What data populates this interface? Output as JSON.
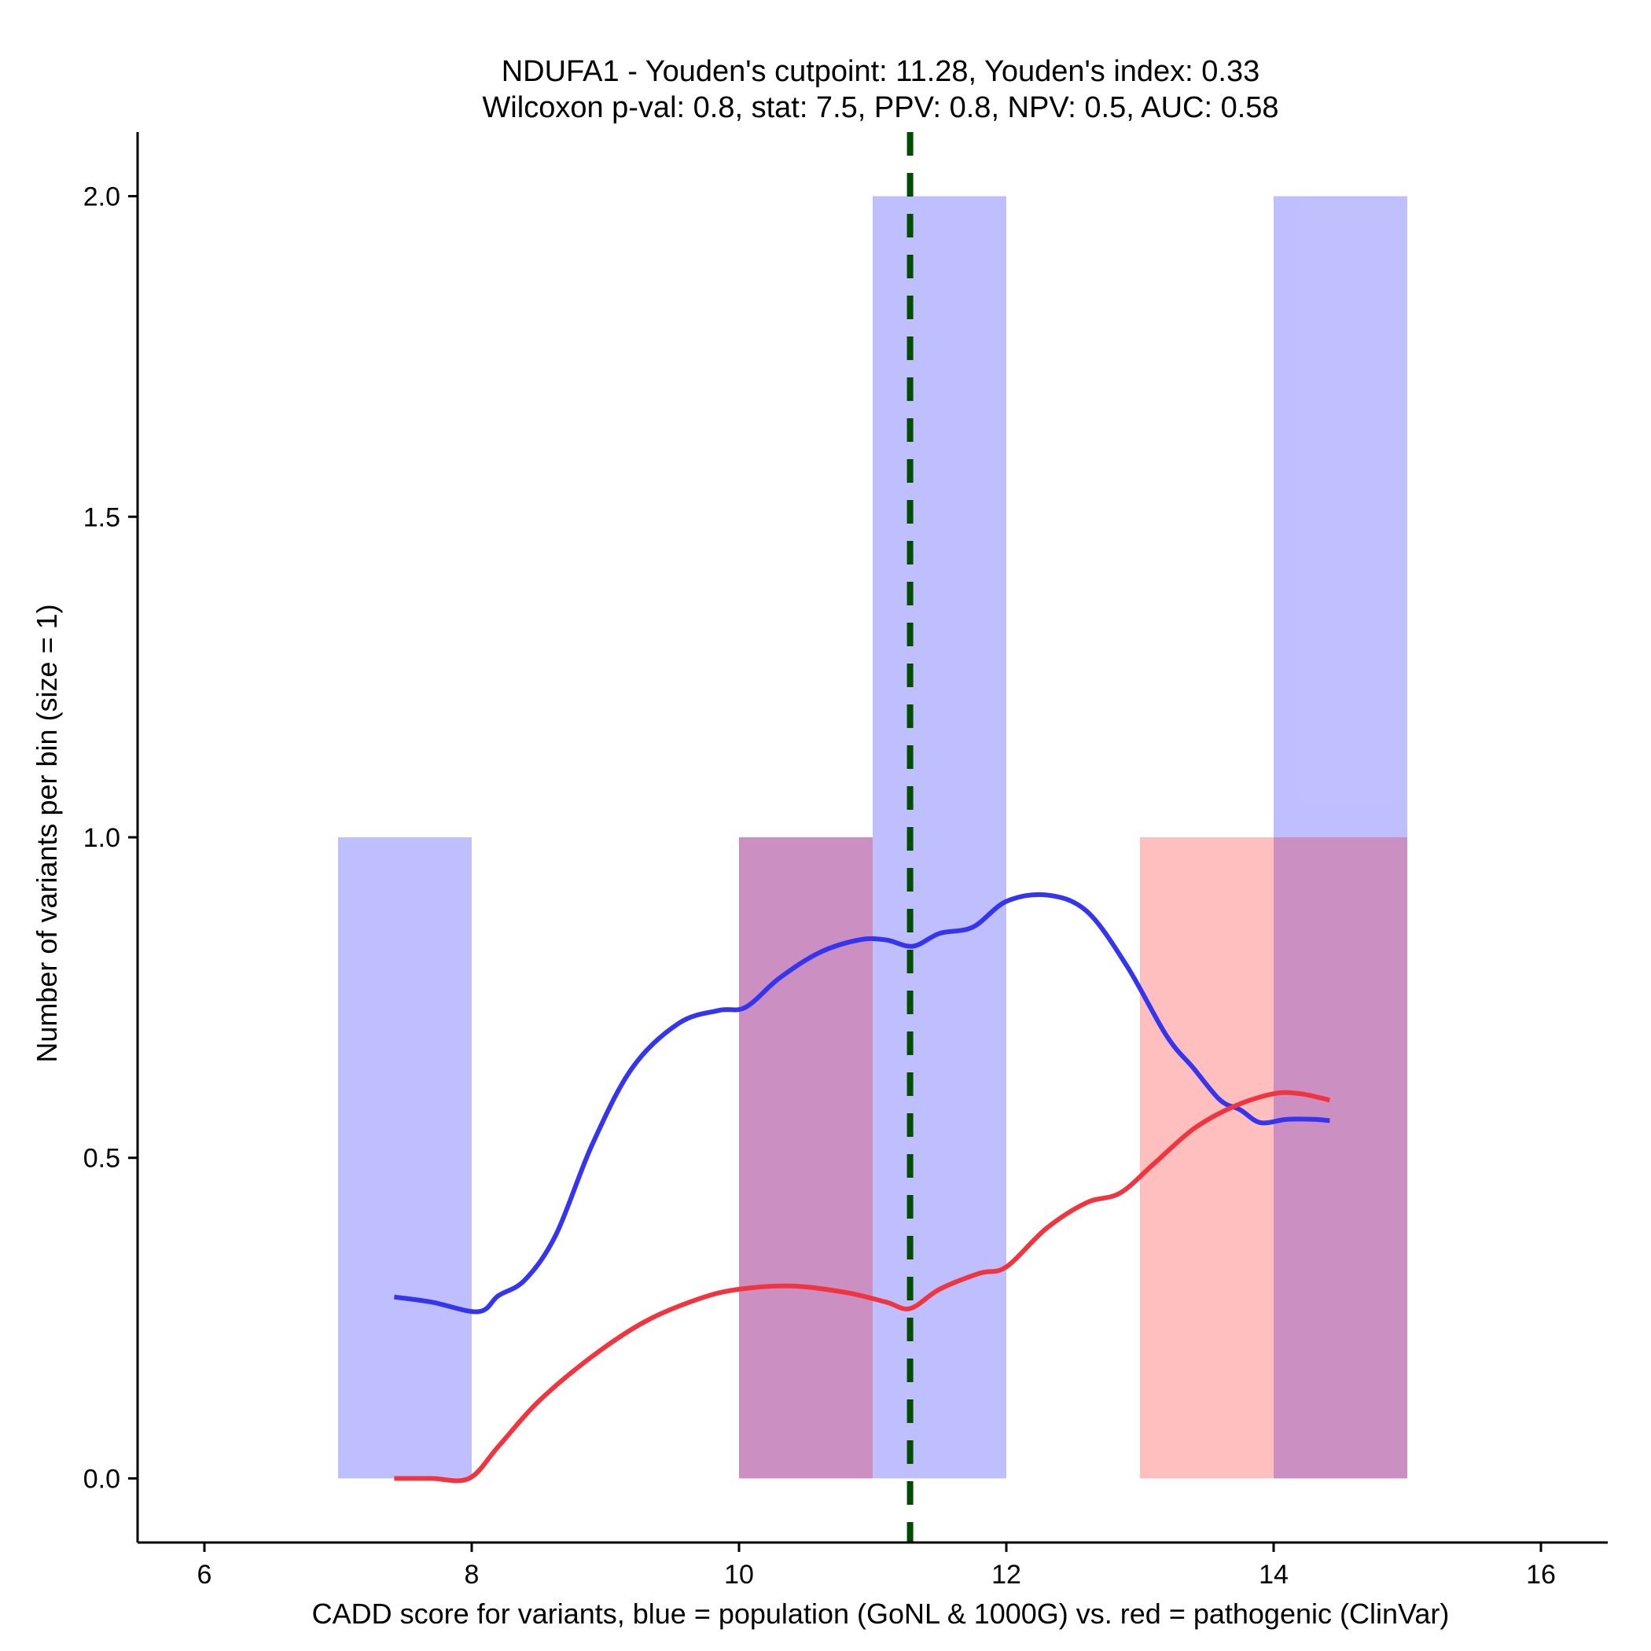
{
  "chart_data": {
    "type": "histogram-density",
    "title_line1": "NDUFA1 - Youden's cutpoint: 11.28, Youden's index: 0.33",
    "title_line2": "Wilcoxon p-val: 0.8, stat: 7.5, PPV: 0.8, NPV: 0.5, AUC: 0.58",
    "xlabel": "CADD score for variants, blue = population (GoNL & 1000G) vs. red = pathogenic (ClinVar)",
    "ylabel": "Number of variants per bin (size = 1)",
    "xlim": [
      5.5,
      16.5
    ],
    "ylim": [
      -0.1,
      2.1
    ],
    "x_ticks": [
      6,
      8,
      10,
      12,
      14,
      16
    ],
    "y_ticks": [
      0.0,
      0.5,
      1.0,
      1.5,
      2.0
    ],
    "y_tick_labels": [
      "0.0",
      "0.5",
      "1.0",
      "1.5",
      "2.0"
    ],
    "cutpoint": 11.28,
    "histograms": [
      {
        "name": "population",
        "color": "#8080ff",
        "opacity": 0.5,
        "bins": [
          {
            "x0": 7,
            "x1": 8,
            "count": 1
          },
          {
            "x0": 11,
            "x1": 12,
            "count": 2
          },
          {
            "x0": 14,
            "x1": 15,
            "count": 2
          }
        ]
      },
      {
        "name": "pathogenic",
        "color": "#ff8080",
        "opacity": 0.5,
        "bins": [
          {
            "x0": 10,
            "x1": 11,
            "count": 1
          },
          {
            "x0": 13,
            "x1": 14,
            "count": 1
          },
          {
            "x0": 14,
            "x1": 15,
            "count": 1
          }
        ]
      }
    ],
    "overlap_bins": [
      {
        "x0": 10,
        "x1": 11,
        "count": 1,
        "color": "#cc8fc1"
      },
      {
        "x0": 14,
        "x1": 15,
        "count": 1,
        "color": "#cc8fc1"
      }
    ],
    "series": [
      {
        "name": "population",
        "color": "#3535f0",
        "x": [
          7.42,
          7.7,
          8.05,
          8.2,
          8.4,
          8.63,
          8.9,
          9.2,
          9.55,
          9.85,
          10.05,
          10.3,
          10.6,
          10.9,
          11.1,
          11.3,
          11.5,
          11.75,
          12.0,
          12.3,
          12.6,
          12.9,
          13.2,
          13.4,
          13.6,
          13.75,
          13.9,
          14.1,
          14.3,
          14.42
        ],
        "y": [
          0.283,
          0.275,
          0.26,
          0.285,
          0.31,
          0.38,
          0.52,
          0.64,
          0.71,
          0.73,
          0.735,
          0.78,
          0.82,
          0.84,
          0.84,
          0.83,
          0.85,
          0.86,
          0.9,
          0.91,
          0.885,
          0.8,
          0.69,
          0.64,
          0.59,
          0.575,
          0.555,
          0.56,
          0.56,
          0.558
        ]
      },
      {
        "name": "pathogenic",
        "color": "#f03540",
        "x": [
          7.42,
          7.7,
          7.98,
          8.2,
          8.5,
          8.9,
          9.3,
          9.7,
          10.0,
          10.4,
          10.8,
          11.1,
          11.28,
          11.5,
          11.8,
          12.0,
          12.3,
          12.6,
          12.85,
          13.1,
          13.4,
          13.7,
          14.0,
          14.2,
          14.42
        ],
        "y": [
          0.0,
          0.0,
          0.0,
          0.05,
          0.12,
          0.19,
          0.245,
          0.28,
          0.295,
          0.3,
          0.29,
          0.275,
          0.265,
          0.295,
          0.32,
          0.33,
          0.39,
          0.43,
          0.445,
          0.49,
          0.545,
          0.58,
          0.6,
          0.6,
          0.59
        ]
      }
    ]
  }
}
